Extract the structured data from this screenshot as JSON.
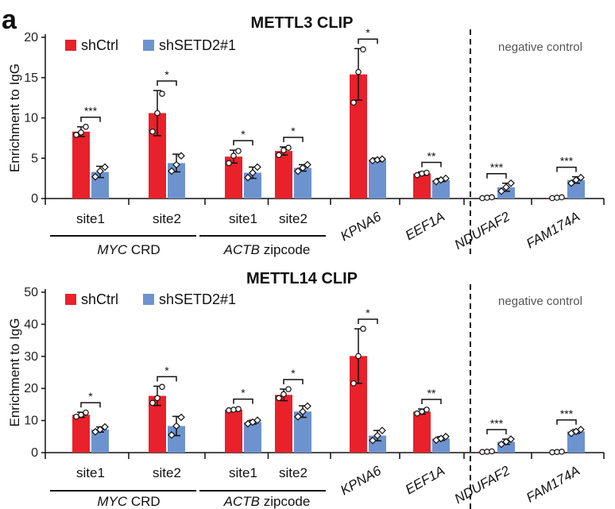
{
  "panel_label": "a",
  "chart_data": [
    {
      "type": "bar",
      "title": "METTL3 CLIP",
      "ylabel": "Enrichment to IgG",
      "ylim": [
        0,
        20
      ],
      "yticks": [
        0,
        5,
        10,
        15,
        20
      ],
      "categories": [
        "site1",
        "site2",
        "site1",
        "site2",
        "KPNA6",
        "EEF1A",
        "NDUFAF2",
        "FAM174A"
      ],
      "italic_categories": [
        "KPNA6",
        "EEF1A",
        "NDUFAF2",
        "FAM174A"
      ],
      "groups": [
        {
          "italic": "MYC",
          "rest": " CRD"
        },
        {
          "italic": "ACTB",
          "rest": " zipcode"
        }
      ],
      "series": [
        {
          "name": "shCtrl",
          "color": "#e8212a",
          "values": [
            8.3,
            10.6,
            5.2,
            5.9,
            15.4,
            3.1,
            0.1,
            0.1
          ],
          "errors": [
            0.6,
            2.8,
            0.8,
            0.5,
            3.2,
            0.2,
            0.05,
            0.05
          ],
          "points": [
            [
              7.9,
              8.2,
              8.9
            ],
            [
              8.3,
              10.6,
              13.0
            ],
            [
              4.4,
              5.3,
              5.9
            ],
            [
              5.4,
              6.0,
              6.3
            ],
            [
              11.9,
              15.7,
              18.5
            ],
            [
              2.9,
              3.1,
              3.2
            ],
            [
              0.05,
              0.1,
              0.15
            ],
            [
              0.05,
              0.1,
              0.15
            ]
          ]
        },
        {
          "name": "shSETD2#1",
          "color": "#6d93cf",
          "values": [
            3.3,
            4.4,
            3.2,
            3.8,
            4.8,
            2.3,
            1.4,
            2.3
          ],
          "errors": [
            0.7,
            1.1,
            0.7,
            0.4,
            0.2,
            0.2,
            0.5,
            0.4
          ],
          "points": [
            [
              2.7,
              3.4,
              3.9
            ],
            [
              3.4,
              4.2,
              5.3
            ],
            [
              2.6,
              3.2,
              3.9
            ],
            [
              3.4,
              3.8,
              4.2
            ],
            [
              4.7,
              4.8,
              4.9
            ],
            [
              2.1,
              2.3,
              2.5
            ],
            [
              0.9,
              1.4,
              1.9
            ],
            [
              1.9,
              2.3,
              2.6
            ]
          ]
        }
      ],
      "significance": [
        "***",
        "*",
        "*",
        "*",
        "*",
        "**",
        "***",
        "***"
      ],
      "annotation": "negative control"
    },
    {
      "type": "bar",
      "title": "METTL14 CLIP",
      "ylabel": "Enrichment to IgG",
      "ylim": [
        0,
        50
      ],
      "yticks": [
        0,
        10,
        20,
        30,
        40,
        50
      ],
      "categories": [
        "site1",
        "site2",
        "site1",
        "site2",
        "KPNA6",
        "EEF1A",
        "NDUFAF2",
        "FAM174A"
      ],
      "italic_categories": [
        "KPNA6",
        "EEF1A",
        "NDUFAF2",
        "FAM174A"
      ],
      "groups": [
        {
          "italic": "MYC",
          "rest": " CRD"
        },
        {
          "italic": "ACTB",
          "rest": " zipcode"
        }
      ],
      "series": [
        {
          "name": "shCtrl",
          "color": "#e8212a",
          "values": [
            11.8,
            17.7,
            13.4,
            18.0,
            30.1,
            12.8,
            0.3,
            0.2
          ],
          "errors": [
            0.8,
            3.0,
            0.3,
            1.8,
            8.5,
            0.8,
            0.1,
            0.1
          ],
          "points": [
            [
              11.2,
              11.8,
              12.5
            ],
            [
              15.5,
              17.0,
              20.5
            ],
            [
              13.2,
              13.4,
              13.6
            ],
            [
              17.0,
              18.2,
              19.8
            ],
            [
              21.6,
              30.1,
              38.6
            ],
            [
              12.2,
              12.8,
              13.4
            ],
            [
              0.2,
              0.3,
              0.4
            ],
            [
              0.1,
              0.2,
              0.3
            ]
          ]
        },
        {
          "name": "shSETD2#1",
          "color": "#6d93cf",
          "values": [
            7.2,
            8.3,
            9.5,
            12.8,
            5.3,
            4.4,
            3.4,
            6.6
          ],
          "errors": [
            0.8,
            3.0,
            0.6,
            1.8,
            1.6,
            0.6,
            0.8,
            0.6
          ],
          "points": [
            [
              6.5,
              7.2,
              8.0
            ],
            [
              5.5,
              8.3,
              11.0
            ],
            [
              9.0,
              9.5,
              10.1
            ],
            [
              11.2,
              12.8,
              14.5
            ],
            [
              3.8,
              5.3,
              6.9
            ],
            [
              3.9,
              4.4,
              5.0
            ],
            [
              2.6,
              3.4,
              4.2
            ],
            [
              6.0,
              6.6,
              7.2
            ]
          ]
        }
      ],
      "significance": [
        "*",
        "*",
        "*",
        "*",
        "*",
        "**",
        "***",
        "***"
      ],
      "annotation": "negative control"
    }
  ]
}
